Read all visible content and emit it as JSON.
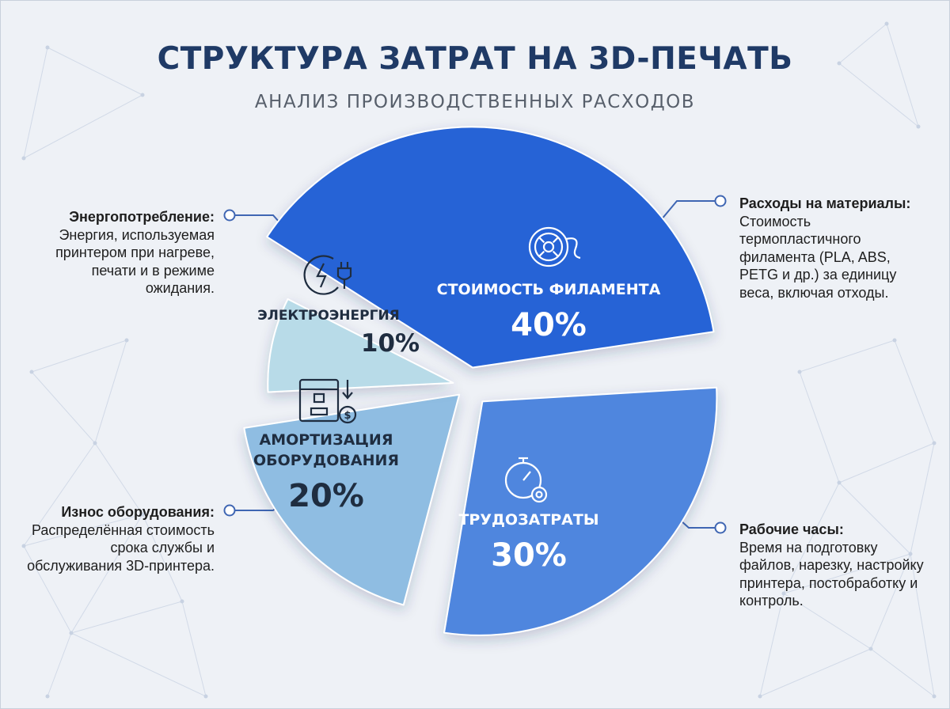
{
  "title": "СТРУКТУРА ЗАТРАТ НА 3D-ПЕЧАТЬ",
  "subtitle": "АНАЛИЗ ПРОИЗВОДСТВЕННЫХ РАСХОДОВ",
  "colors": {
    "filament": "#2563d6",
    "labor": "#4f86de",
    "equipment": "#8fbde2",
    "electricity": "#b8dbe8",
    "title": "#1f3a66",
    "leader": "#3f66b3"
  },
  "chart_data": {
    "type": "pie",
    "title": "СТРУКТУРА ЗАТРАТ НА 3D-ПЕЧАТЬ",
    "exploded": true,
    "slices": [
      {
        "key": "filament",
        "label": "СТОИМОСТЬ ФИЛАМЕНТА",
        "value": 40,
        "value_label": "40%",
        "icon": "filament-spool-icon"
      },
      {
        "key": "labor",
        "label": "ТРУДОЗАТРАТЫ",
        "value": 30,
        "value_label": "30%",
        "icon": "stopwatch-gear-icon"
      },
      {
        "key": "equipment",
        "label": "АМОРТИЗАЦИЯ ОБОРУДОВАНИЯ",
        "label_lines": [
          "АМОРТИЗАЦИЯ",
          "ОБОРУДОВАНИЯ"
        ],
        "value": 20,
        "value_label": "20%",
        "icon": "printer-depreciation-icon"
      },
      {
        "key": "electricity",
        "label": "ЭЛЕКТРОЭНЕРГИЯ",
        "value": 10,
        "value_label": "10%",
        "icon": "power-plug-icon"
      }
    ]
  },
  "annotations": {
    "energy": {
      "title": "Энергопотребление:",
      "text": "Энергия, используемая принтером при нагреве, печати и в режиме ожидания."
    },
    "equipment": {
      "title": "Износ оборудования:",
      "text": "Распределённая стоимость срока службы и обслуживания 3D-принтера."
    },
    "materials": {
      "title": "Расходы на материалы:",
      "text": "Стоимость термопластичного филамента (PLA, ABS, PETG и др.) за единицу веса, включая отходы."
    },
    "labor": {
      "title": "Рабочие часы:",
      "text": "Время на подготовку файлов, нарезку, настройку принтера, постобработку и контроль."
    }
  }
}
